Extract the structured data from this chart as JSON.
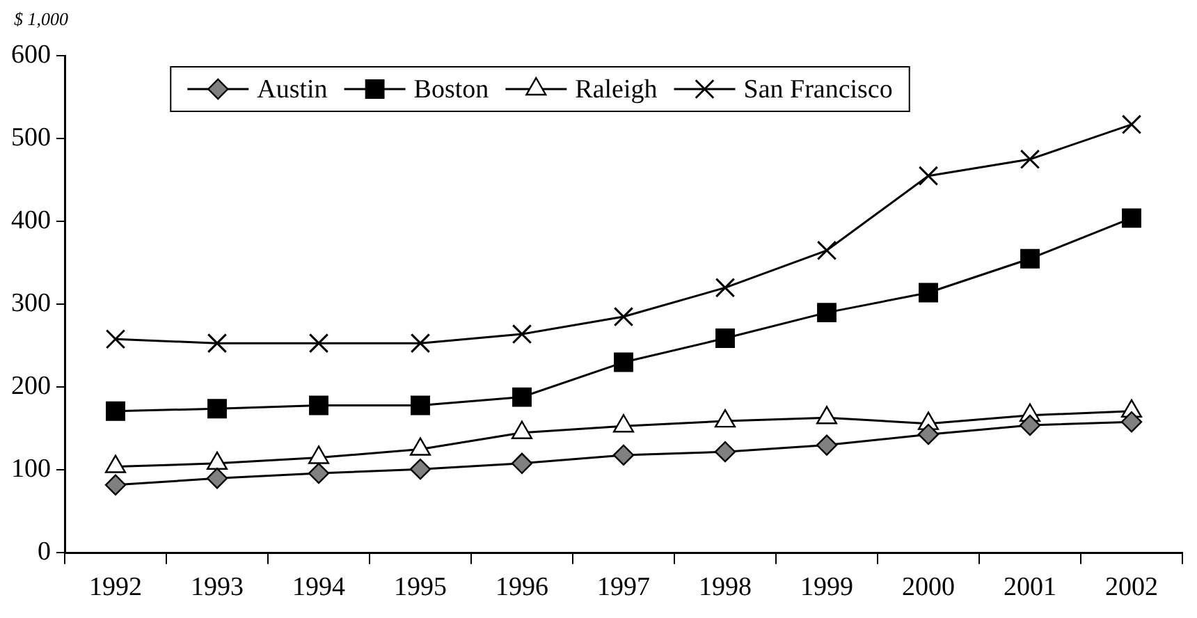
{
  "chart_data": {
    "type": "line",
    "ylabel": "$ 1,000",
    "categories": [
      "1992",
      "1993",
      "1994",
      "1995",
      "1996",
      "1997",
      "1998",
      "1999",
      "2000",
      "2001",
      "2002"
    ],
    "series": [
      {
        "name": "Austin",
        "color": "#808080",
        "marker": "diamond",
        "values": [
          82,
          90,
          96,
          101,
          108,
          118,
          122,
          130,
          143,
          154,
          158
        ]
      },
      {
        "name": "Boston",
        "color": "#000000",
        "marker": "square",
        "values": [
          171,
          174,
          178,
          178,
          188,
          230,
          259,
          290,
          314,
          355,
          404
        ]
      },
      {
        "name": "Raleigh",
        "color": "#ffffff",
        "marker": "triangle",
        "values": [
          104,
          108,
          115,
          125,
          145,
          153,
          159,
          163,
          156,
          166,
          171
        ]
      },
      {
        "name": "San Francisco",
        "color": "#000000",
        "marker": "cross",
        "values": [
          258,
          253,
          253,
          253,
          264,
          285,
          320,
          365,
          455,
          475,
          517
        ]
      }
    ],
    "ylim": [
      0,
      600
    ],
    "yticks": [
      0,
      100,
      200,
      300,
      400,
      500,
      600
    ],
    "grid": false,
    "legend": "top"
  }
}
